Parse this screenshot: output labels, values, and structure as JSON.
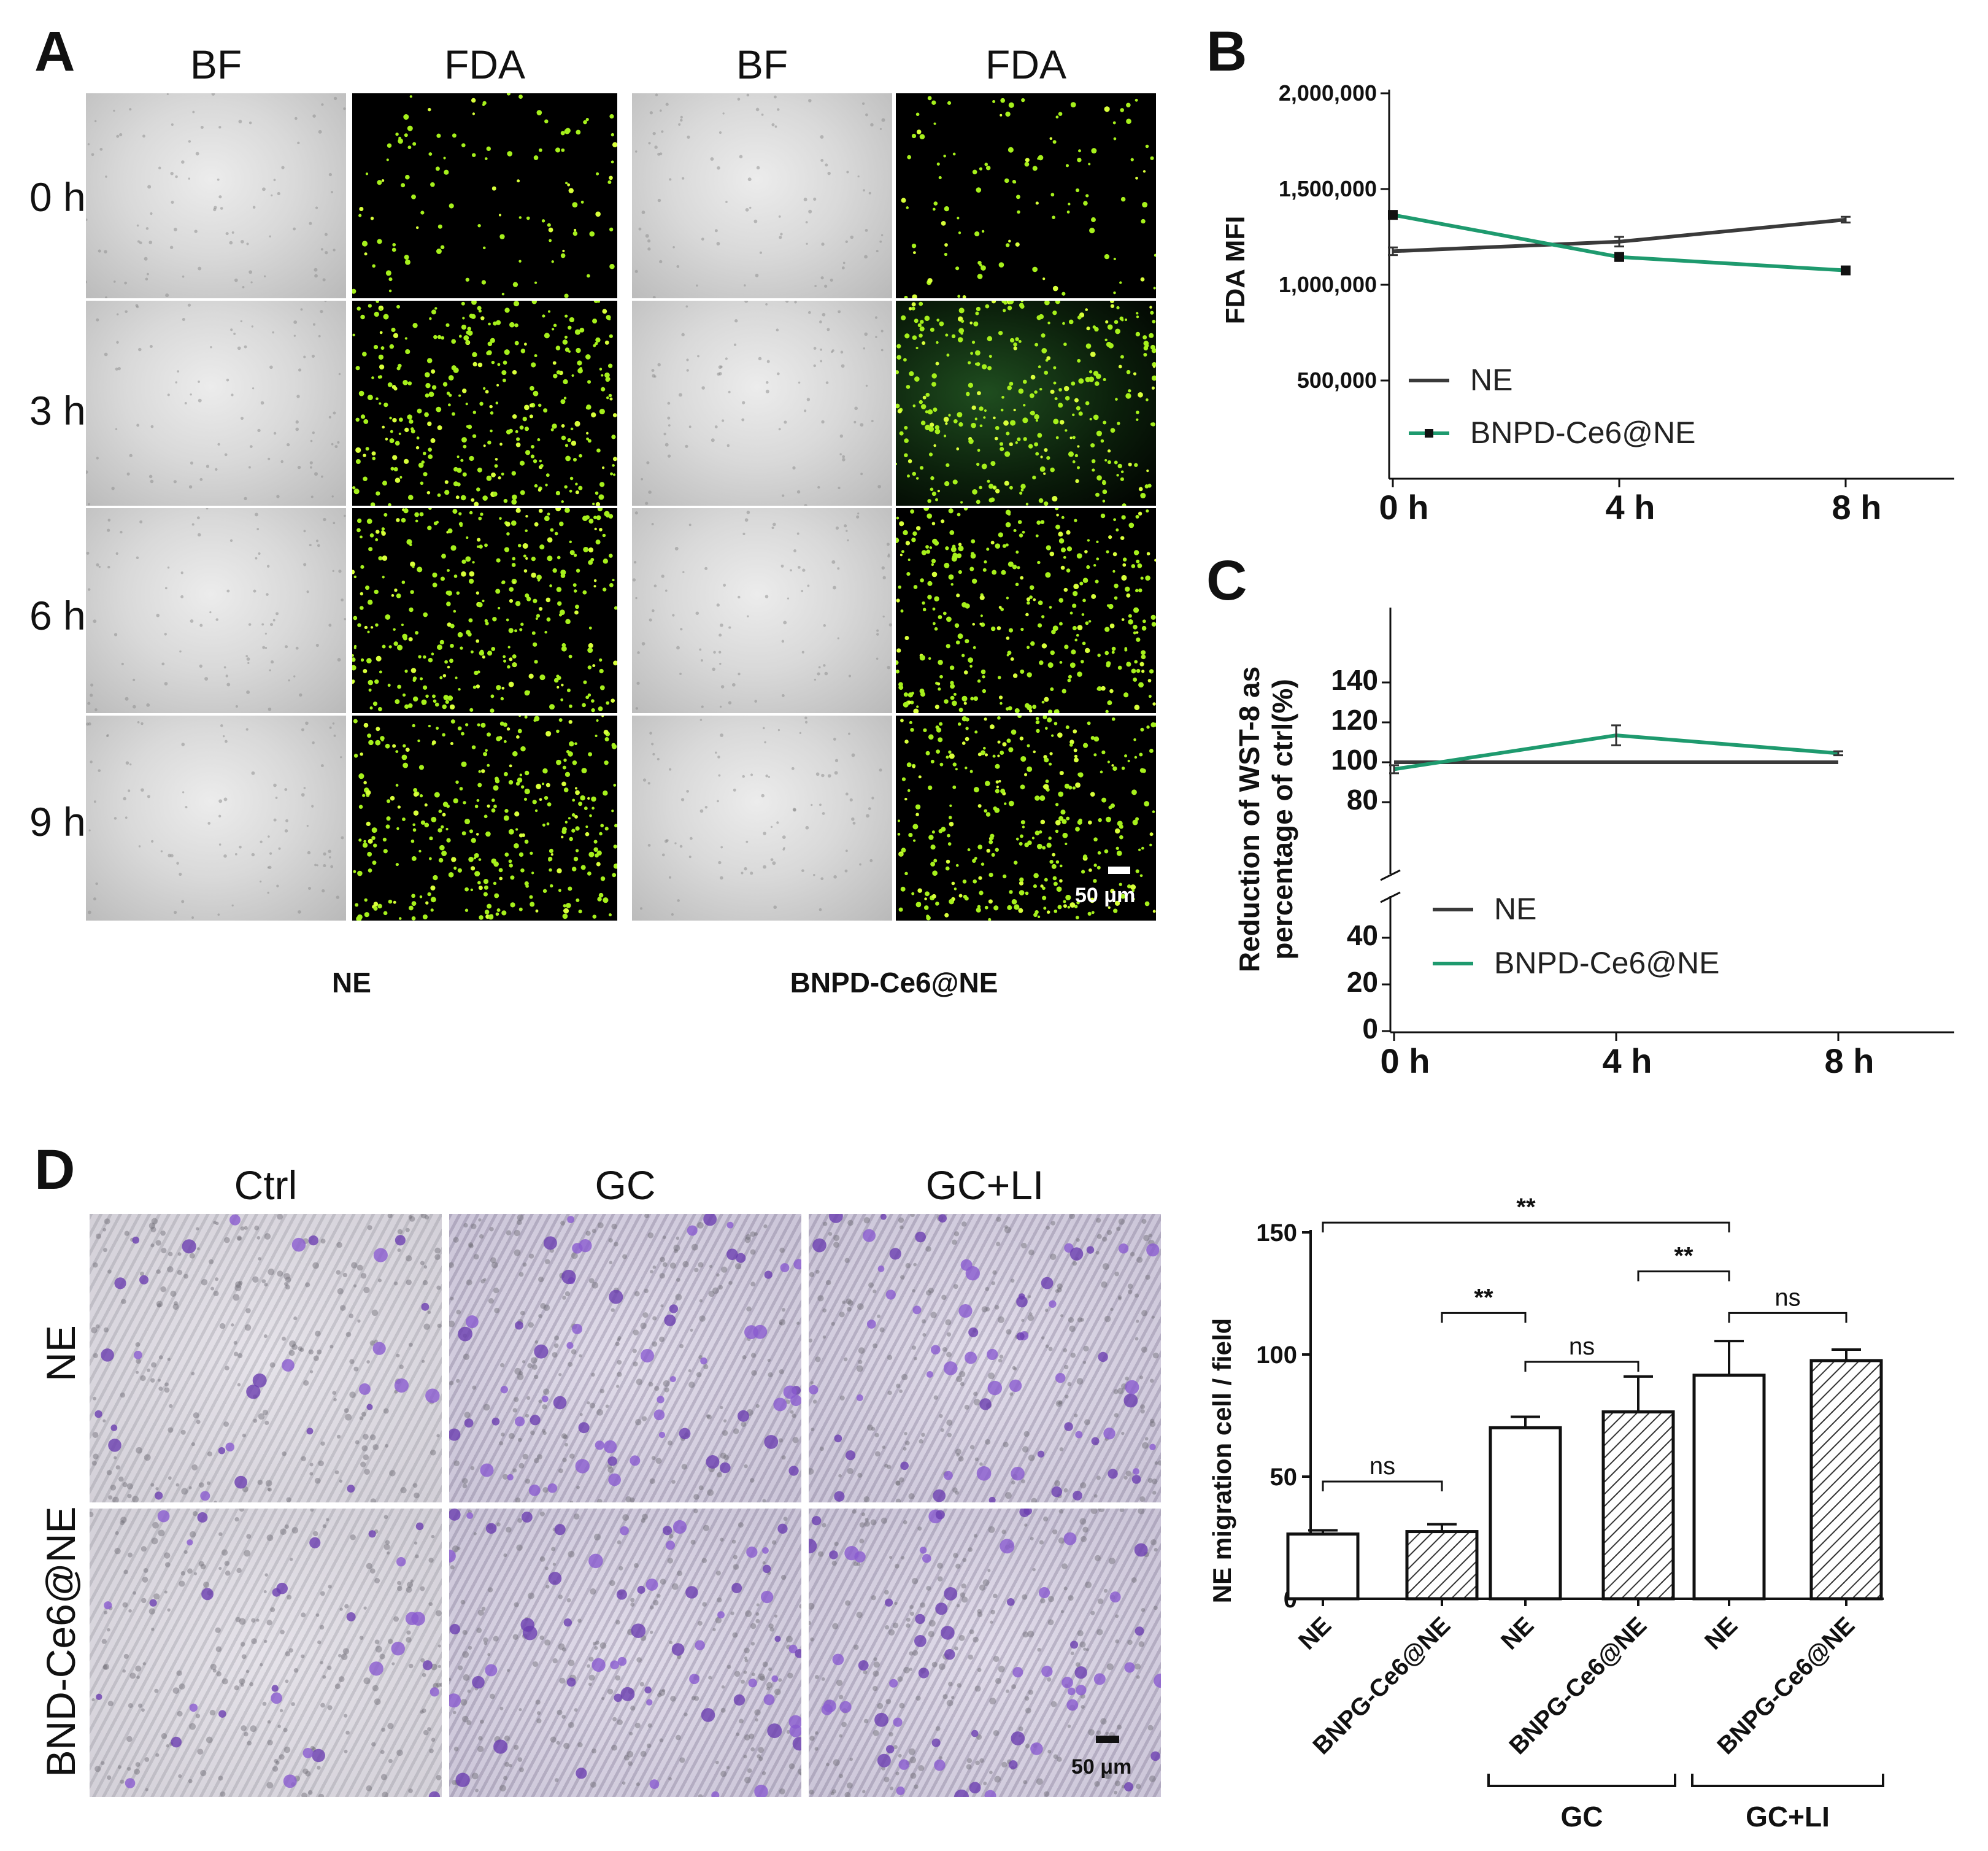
{
  "panelA": {
    "letter": "A",
    "column_headers": [
      "BF",
      "FDA",
      "BF",
      "FDA"
    ],
    "row_labels": [
      "0 h",
      "3 h",
      "6 h",
      "9 h"
    ],
    "group_labels": [
      "NE",
      "BNPD-Ce6@NE"
    ],
    "scale_bar": "50 μm"
  },
  "panelD_images": {
    "letter": "D",
    "column_headers": [
      "Ctrl",
      "GC",
      "GC+LI"
    ],
    "row_labels": [
      "NE",
      "BND-Ce6@NE"
    ],
    "scale_bar": "50 μm"
  },
  "chart_data": [
    {
      "id": "B",
      "letter": "B",
      "type": "line",
      "x": [
        "0 h",
        "4 h",
        "8 h"
      ],
      "ylabel": "FDA MFI",
      "xlabel": "",
      "ylim": [
        0,
        2000000
      ],
      "yticks": [
        "500,000",
        "1,000,000",
        "1,500,000",
        "2,000,000"
      ],
      "ytick_values": [
        500000,
        1000000,
        1500000,
        2000000
      ],
      "grid": false,
      "legend": "lower-left",
      "series": [
        {
          "name": "NE",
          "color": "#3a3a3a",
          "values": [
            1175000,
            1225000,
            1340000
          ],
          "errors": [
            20000,
            25000,
            15000
          ]
        },
        {
          "name": "BNPD-Ce6@NE",
          "color": "#1e9a6e",
          "marker": "square",
          "values": [
            1365000,
            1145000,
            1075000
          ],
          "errors": [
            10000,
            15000,
            12000
          ]
        }
      ]
    },
    {
      "id": "C",
      "letter": "C",
      "type": "line",
      "x": [
        "0 h",
        "4 h",
        "8 h"
      ],
      "ylabel_line1": "Reduction of WST-8 as",
      "ylabel_line2": "percentage  of  ctrl(%)",
      "xlabel": "",
      "ylim": [
        0,
        140
      ],
      "axis_break": [
        40,
        70
      ],
      "yticks": [
        "0",
        "20",
        "40",
        "80",
        "100",
        "120",
        "140"
      ],
      "ytick_values": [
        0,
        20,
        40,
        80,
        100,
        120,
        140
      ],
      "grid": false,
      "legend": "lower-left",
      "series": [
        {
          "name": "NE",
          "color": "#3a3a3a",
          "values": [
            100,
            100,
            100
          ],
          "errors": [
            0,
            0,
            0
          ]
        },
        {
          "name": "BNPD-Ce6@NE",
          "color": "#1e9a6e",
          "values": [
            96.5,
            113.5,
            104.5
          ],
          "errors": [
            2,
            5,
            1
          ]
        }
      ]
    },
    {
      "id": "D",
      "type": "bar",
      "categories": [
        "NE",
        "BNPG-Ce6@NE",
        "NE",
        "BNPG-Ce6@NE",
        "NE",
        "BNPG-Ce6@NE"
      ],
      "groups": [
        {
          "label": "GC",
          "from": 2,
          "to": 3
        },
        {
          "label": "GC+LI",
          "from": 4,
          "to": 5
        }
      ],
      "ylabel": "NE migration cell / field",
      "xlabel": "",
      "ylim": [
        0,
        150
      ],
      "yticks": [
        "0",
        "50",
        "100",
        "150"
      ],
      "ytick_values": [
        0,
        50,
        100,
        150
      ],
      "values": [
        26.5,
        27.5,
        70,
        76.5,
        91.5,
        97.5
      ],
      "errors": [
        1.5,
        3,
        4.5,
        14.5,
        14,
        4.5
      ],
      "hatched": [
        false,
        true,
        false,
        true,
        false,
        true
      ],
      "significance": [
        {
          "from": 0,
          "to": 1,
          "label": "ns",
          "level": 48
        },
        {
          "from": 2,
          "to": 3,
          "label": "ns",
          "level": 97
        },
        {
          "from": 4,
          "to": 5,
          "label": "ns",
          "level": 117
        },
        {
          "from": 1,
          "to": 2,
          "label": "**",
          "level": 117
        },
        {
          "from": 3,
          "to": 4,
          "label": "**",
          "level": 134
        },
        {
          "from": 0,
          "to": 4,
          "label": "**",
          "level": 154
        }
      ]
    }
  ]
}
